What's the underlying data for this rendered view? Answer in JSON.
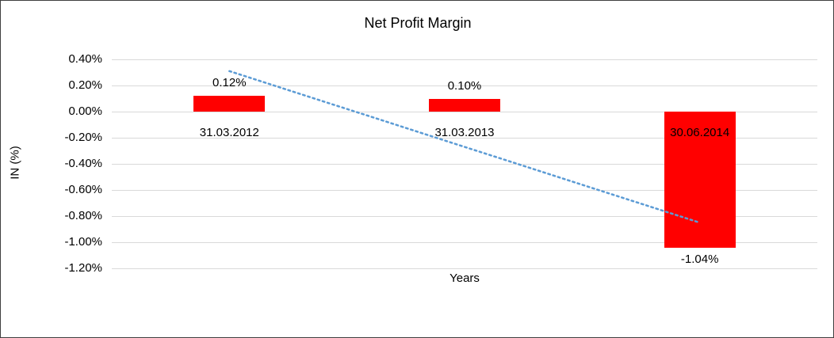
{
  "frame": {
    "background": "#ffffff",
    "border_color": "#3f3f3f"
  },
  "chart_data": {
    "type": "bar",
    "title": "Net Profit Margin",
    "xlabel": "Years",
    "ylabel": "IN (%)",
    "categories": [
      "31.03.2012",
      "31.03.2013",
      "30.06.2014"
    ],
    "values": [
      0.12,
      0.1,
      -1.04
    ],
    "data_labels": [
      "0.12%",
      "0.10%",
      "-1.04%"
    ],
    "ylim": [
      -1.2,
      0.4
    ],
    "ytick_step": 0.2,
    "y_tick_labels": [
      "0.40%",
      "0.20%",
      "0.00%",
      "-0.20%",
      "-0.40%",
      "-0.60%",
      "-0.80%",
      "-1.00%",
      "-1.20%"
    ],
    "bar_color": "#ff0000",
    "grid": true,
    "gridline_color": "#d9d9d9",
    "legend_position": "none",
    "trendline": {
      "type": "linear",
      "style": "dotted",
      "color": "#5b9bd5",
      "start_value": 0.31,
      "end_value": -0.85
    }
  }
}
